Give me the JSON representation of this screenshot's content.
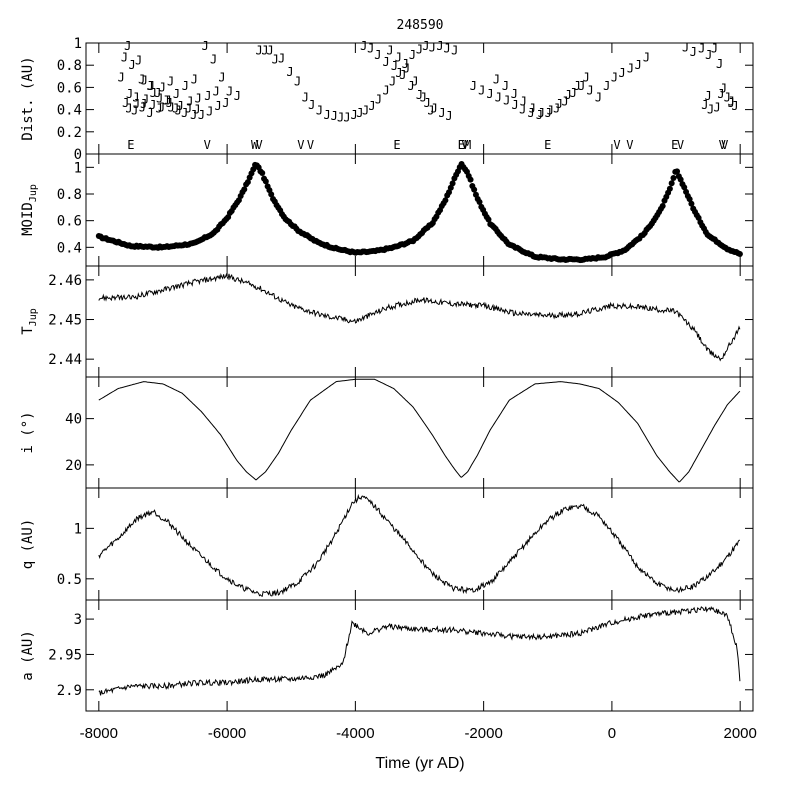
{
  "chart_data": {
    "type": "line",
    "title": "248590",
    "xlabel": "Time (yr AD)",
    "xlim": [
      -8200,
      2200
    ],
    "xticks": [
      -8000,
      -6000,
      -4000,
      -2000,
      0,
      2000
    ],
    "xtick_labels": [
      "-8000",
      "-6000",
      "-4000",
      "-2000",
      "0",
      "2000"
    ],
    "panels": [
      {
        "id": "dist",
        "ylabel": "Dist. (AU)",
        "ylim": [
          0,
          1
        ],
        "yticks": [
          0,
          0.2,
          0.4,
          0.6,
          0.8,
          1
        ],
        "ytick_labels": [
          "0",
          "0.2",
          "0.4",
          "0.6",
          "0.8",
          "1"
        ],
        "series": [
          {
            "marker": "J",
            "style": "text-markers",
            "x": [
              -7550,
              -7380,
              -7290,
              -7180,
              -7050,
              -6900,
              -6760,
              -6600,
              -6470,
              -6340,
              -6210,
              -6080,
              -5960,
              -5840,
              -7600,
              -7480,
              -7330,
              -7200,
              -7080,
              -6950,
              -6800,
              -6660,
              -6520,
              -6400,
              -6270,
              -6140,
              -6020,
              -7650,
              -7520,
              -7420,
              -7300,
              -7160,
              -7020,
              -6870,
              -6730,
              -6580,
              -6450,
              -6300,
              -6170,
              -7580,
              -7440,
              -7320,
              -7200,
              -7060,
              -6920,
              -6790,
              -6650,
              -6510,
              -7530,
              -7410,
              -7270,
              -7150,
              -7010,
              -6880,
              -5500,
              -5410,
              -5330,
              -5250,
              -5150,
              -5020,
              -4900,
              -4780,
              -4680,
              -4560,
              -4440,
              -4330,
              -4230,
              -4130,
              -4020,
              -3930,
              -3840,
              -3740,
              -3640,
              -3520,
              -3420,
              -3320,
              -3220,
              -3110,
              -3000,
              -2900,
              -2800,
              -2680,
              -2570,
              -2450,
              -3870,
              -3760,
              -3650,
              -3520,
              -3390,
              -3260,
              -3130,
              -3000,
              -2880,
              -2770,
              -2650,
              -2540,
              -3460,
              -3330,
              -3200,
              -3070,
              -2940,
              -2820,
              -2160,
              -2030,
              -1900,
              -1770,
              -1640,
              -1510,
              -1390,
              -1260,
              -1130,
              -990,
              -860,
              -730,
              -600,
              -470,
              -340,
              -210,
              -80,
              40,
              160,
              290,
              410,
              540,
              -1800,
              -1660,
              -1520,
              -1380,
              -1240,
              -1100,
              -960,
              -820,
              -680,
              -540,
              -400,
              1150,
              1270,
              1400,
              1510,
              1600,
              1680,
              1740,
              1800,
              1860,
              1920,
              1500,
              1450,
              1540,
              1640,
              1700,
              1860
            ],
            "y": [
              0.98,
              0.85,
              0.67,
              0.62,
              0.51,
              0.47,
              0.4,
              0.42,
              0.41,
              0.98,
              0.86,
              0.7,
              0.57,
              0.53,
              0.88,
              0.81,
              0.68,
              0.62,
              0.56,
              0.49,
              0.42,
              0.38,
              0.36,
              0.36,
              0.39,
              0.44,
              0.47,
              0.7,
              0.55,
              0.52,
              0.46,
              0.45,
              0.43,
              0.43,
              0.44,
              0.48,
              0.51,
              0.53,
              0.57,
              0.47,
              0.4,
              0.43,
              0.38,
              0.42,
              0.49,
              0.55,
              0.62,
              0.68,
              0.42,
              0.46,
              0.5,
              0.56,
              0.61,
              0.66,
              0.94,
              0.94,
              0.94,
              0.86,
              0.87,
              0.75,
              0.66,
              0.52,
              0.45,
              0.4,
              0.36,
              0.35,
              0.34,
              0.34,
              0.36,
              0.38,
              0.4,
              0.44,
              0.5,
              0.58,
              0.66,
              0.74,
              0.82,
              0.9,
              0.95,
              0.98,
              0.97,
              0.98,
              0.96,
              0.94,
              0.98,
              0.96,
              0.9,
              0.84,
              0.8,
              0.72,
              0.62,
              0.54,
              0.47,
              0.42,
              0.38,
              0.35,
              0.94,
              0.88,
              0.78,
              0.66,
              0.52,
              0.4,
              0.62,
              0.58,
              0.55,
              0.52,
              0.49,
              0.45,
              0.41,
              0.38,
              0.36,
              0.38,
              0.42,
              0.48,
              0.56,
              0.62,
              0.58,
              0.52,
              0.62,
              0.7,
              0.74,
              0.78,
              0.81,
              0.88,
              0.68,
              0.62,
              0.55,
              0.48,
              0.42,
              0.38,
              0.4,
              0.46,
              0.54,
              0.62,
              0.7,
              0.97,
              0.93,
              0.96,
              0.9,
              0.96,
              0.82,
              0.6,
              0.52,
              0.48,
              0.44,
              0.53,
              0.45,
              0.41,
              0.43,
              0.55,
              0.47
            ]
          }
        ],
        "annotations": [
          {
            "label": "E",
            "x": -7500
          },
          {
            "label": "V",
            "x": -6310
          },
          {
            "label": "W",
            "x": -5570
          },
          {
            "label": "V",
            "x": -5500
          },
          {
            "label": "V",
            "x": -4850
          },
          {
            "label": "V",
            "x": -4700
          },
          {
            "label": "E",
            "x": -3350
          },
          {
            "label": "E",
            "x": -2350
          },
          {
            "label": "V",
            "x": -2290
          },
          {
            "label": "M",
            "x": -2250
          },
          {
            "label": "E",
            "x": -1000
          },
          {
            "label": "V",
            "x": 80
          },
          {
            "label": "V",
            "x": 280
          },
          {
            "label": "E",
            "x": 980
          },
          {
            "label": "V",
            "x": 1070
          },
          {
            "label": "V",
            "x": 1720
          },
          {
            "label": "V",
            "x": 1760
          }
        ]
      },
      {
        "id": "moid",
        "ylabel": "MOID",
        "ylabel_sub": "Jup",
        "ylim": [
          0.26,
          1.1
        ],
        "yticks": [
          0.4,
          0.6,
          0.8,
          1
        ],
        "ytick_labels": [
          "0.4",
          "0.6",
          "0.8",
          "1"
        ],
        "series": [
          {
            "style": "dots",
            "x": [
              -8000,
              -7500,
              -7000,
              -6500,
              -6200,
              -6000,
              -5800,
              -5650,
              -5550,
              -5450,
              -5300,
              -5100,
              -4900,
              -4600,
              -4300,
              -4000,
              -3700,
              -3400,
              -3100,
              -2800,
              -2600,
              -2450,
              -2350,
              -2250,
              -2100,
              -1900,
              -1600,
              -1200,
              -800,
              -400,
              -100,
              200,
              500,
              750,
              900,
              1000,
              1100,
              1300,
              1500,
              1800,
              2000
            ],
            "y": [
              0.48,
              0.41,
              0.4,
              0.43,
              0.51,
              0.62,
              0.77,
              0.92,
              1.03,
              0.95,
              0.78,
              0.62,
              0.53,
              0.44,
              0.39,
              0.36,
              0.37,
              0.4,
              0.45,
              0.58,
              0.75,
              0.92,
              1.03,
              0.96,
              0.77,
              0.58,
              0.42,
              0.33,
              0.31,
              0.31,
              0.33,
              0.38,
              0.5,
              0.67,
              0.83,
              0.98,
              0.88,
              0.66,
              0.49,
              0.39,
              0.35
            ]
          }
        ]
      },
      {
        "id": "tjup",
        "ylabel": "T",
        "ylabel_sub": "Jup",
        "ylim": [
          2.4355,
          2.4635
        ],
        "yticks": [
          2.44,
          2.45,
          2.46
        ],
        "ytick_labels": [
          "2.44",
          "2.45",
          "2.46"
        ],
        "series": [
          {
            "style": "noisy-line",
            "x": [
              -8000,
              -7500,
              -7000,
              -6500,
              -6000,
              -5500,
              -5000,
              -4500,
              -4000,
              -3500,
              -3000,
              -2500,
              -2000,
              -1500,
              -1000,
              -500,
              0,
              500,
              1000,
              1300,
              1500,
              1700,
              2000
            ],
            "y": [
              2.4555,
              2.4555,
              2.4575,
              2.4595,
              2.461,
              2.458,
              2.4535,
              2.451,
              2.4495,
              2.453,
              2.455,
              2.454,
              2.4535,
              2.4515,
              2.451,
              2.4515,
              2.4535,
              2.453,
              2.452,
              2.447,
              2.442,
              2.44,
              2.448
            ]
          }
        ]
      },
      {
        "id": "incl",
        "ylabel": "i (°)",
        "ylim": [
          10,
          58
        ],
        "yticks": [
          20,
          40
        ],
        "ytick_labels": [
          "20",
          "40"
        ],
        "series": [
          {
            "style": "line",
            "x": [
              -8000,
              -7700,
              -7300,
              -7000,
              -6700,
              -6400,
              -6100,
              -5850,
              -5700,
              -5550,
              -5400,
              -5200,
              -5000,
              -4700,
              -4300,
              -4000,
              -3700,
              -3400,
              -3100,
              -2800,
              -2600,
              -2450,
              -2350,
              -2250,
              -2100,
              -1900,
              -1600,
              -1200,
              -800,
              -500,
              -200,
              100,
              400,
              700,
              900,
              1050,
              1200,
              1400,
              1600,
              1800,
              2000
            ],
            "y": [
              48,
              53,
              56,
              55,
              51,
              43,
              33,
              22,
              17,
              13.5,
              17,
              25,
              35,
              48,
              56,
              57,
              57,
              53,
              45,
              33,
              24,
              18,
              14.5,
              17,
              24,
              35,
              48,
              55,
              56,
              55,
              53,
              47,
              38,
              24,
              17,
              12.5,
              17,
              27,
              37,
              46,
              52
            ]
          }
        ]
      },
      {
        "id": "q",
        "ylabel": "q (AU)",
        "ylim": [
          0.29,
          1.4
        ],
        "yticks": [
          0.5,
          1
        ],
        "ytick_labels": [
          "0.5",
          "1"
        ],
        "series": [
          {
            "style": "noisy-line",
            "x": [
              -8000,
              -7700,
              -7400,
              -7150,
              -6900,
              -6500,
              -6100,
              -5800,
              -5500,
              -5200,
              -4900,
              -4600,
              -4300,
              -4050,
              -3900,
              -3700,
              -3400,
              -3100,
              -2800,
              -2500,
              -2200,
              -1900,
              -1600,
              -1300,
              -1000,
              -700,
              -450,
              -200,
              100,
              400,
              700,
              1000,
              1300,
              1600,
              1800,
              2000
            ],
            "y": [
              0.73,
              0.9,
              1.1,
              1.17,
              1.05,
              0.78,
              0.55,
              0.42,
              0.35,
              0.36,
              0.46,
              0.65,
              0.95,
              1.25,
              1.32,
              1.22,
              1.0,
              0.78,
              0.55,
              0.41,
              0.38,
              0.46,
              0.66,
              0.88,
              1.08,
              1.2,
              1.22,
              1.12,
              0.88,
              0.62,
              0.45,
              0.38,
              0.43,
              0.58,
              0.72,
              0.88
            ]
          }
        ]
      },
      {
        "id": "a",
        "ylabel": "a (AU)",
        "ylim": [
          2.87,
          3.027
        ],
        "yticks": [
          2.9,
          2.95,
          3
        ],
        "ytick_labels": [
          "2.9",
          "2.95",
          "3"
        ],
        "series": [
          {
            "style": "noisy-line",
            "x": [
              -8000,
              -7500,
              -7000,
              -6500,
              -6000,
              -5500,
              -5000,
              -4500,
              -4200,
              -4100,
              -4050,
              -3800,
              -3500,
              -3000,
              -2500,
              -2000,
              -1500,
              -1000,
              -500,
              0,
              500,
              1000,
              1500,
              1800,
              1950,
              2000
            ],
            "y": [
              2.895,
              2.905,
              2.905,
              2.91,
              2.91,
              2.915,
              2.915,
              2.92,
              2.935,
              2.975,
              2.995,
              2.98,
              2.99,
              2.985,
              2.985,
              2.98,
              2.975,
              2.975,
              2.98,
              2.995,
              3.005,
              3.01,
              3.015,
              3.005,
              2.96,
              2.91
            ]
          }
        ]
      }
    ]
  }
}
